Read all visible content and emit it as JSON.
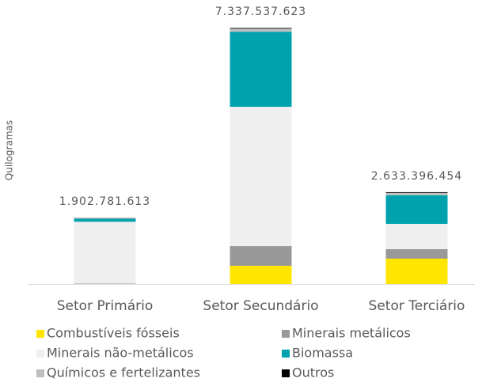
{
  "chart_data": {
    "type": "stacked_bar",
    "y_label": "Quilogramas",
    "categories": [
      "Setor Primário",
      "Setor Secundário",
      "Setor Terciário"
    ],
    "series": [
      {
        "name": "Combustíveis fósseis",
        "color": "#FFE600",
        "values": [
          2000000,
          521000000,
          725000000
        ]
      },
      {
        "name": "Minerais metálicos",
        "color": "#999999",
        "values": [
          10000000,
          566000000,
          272000000
        ]
      },
      {
        "name": "Minerais não-metálicos",
        "color": "#EFEFEF",
        "values": [
          1770000000,
          3990000000,
          725000000
        ]
      },
      {
        "name": "Biomassa",
        "color": "#00A3AD",
        "values": [
          90000000,
          2150000000,
          820000000
        ]
      },
      {
        "name": "Químicos e fertelizantes",
        "color": "#BFBFBF",
        "values": [
          30000000,
          90000000,
          68000000
        ]
      },
      {
        "name": "Outros",
        "color": "#000000",
        "values": [
          1000000,
          20000000,
          20000000
        ]
      }
    ],
    "totals": [
      1902781613,
      7337537623,
      2633396454
    ],
    "total_labels": [
      "1.902.781.613",
      "7.337.537.623",
      "2.633.396.454"
    ],
    "ylim": [
      0,
      8000000000
    ]
  }
}
